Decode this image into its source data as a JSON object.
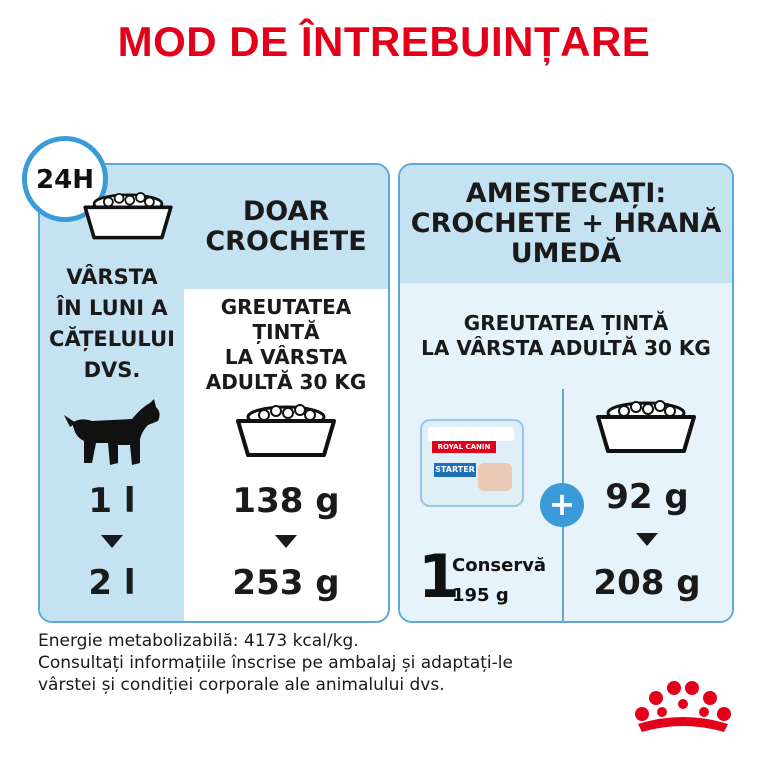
{
  "title": "MOD DE ÎNTREBUINȚARE",
  "left": {
    "badge": "24H",
    "age_label": [
      "VÂRSTA",
      "ÎN LUNI A",
      "CĂȚELULUI",
      "DVS."
    ],
    "heading": [
      "DOAR",
      "CROCHETE"
    ],
    "target": [
      "GREUTATEA ȚINTĂ",
      "LA VÂRSTA",
      "ADULTĂ 30 KG"
    ],
    "age_from": "1 l",
    "age_to": "2 l",
    "dry_from": "138 g",
    "dry_to": "253 g"
  },
  "right": {
    "heading": [
      "AMESTECAȚI:",
      "CROCHETE + HRANĂ",
      "UMEDĂ"
    ],
    "target": [
      "GREUTATEA ȚINTĂ",
      "LA VÂRSTA ADULTĂ 30 KG"
    ],
    "can_brand": "ROYAL CANIN",
    "can_product": "STARTER",
    "can_count": "1",
    "can_label": "Conservă",
    "can_weight": "195 g",
    "plus": "+",
    "dry_from": "92 g",
    "dry_to": "208 g"
  },
  "notes": [
    "Energie metabolizabilă: 4173 kcal/kg.",
    "Consultați informațiile înscrise pe ambalaj și adaptați-le",
    "vârstei și condiției corporale ale animalului dvs."
  ],
  "colors": {
    "brand_red": "#e2001a",
    "panel_blue": "#c5e2f2",
    "border_blue": "#5fa8d6"
  }
}
